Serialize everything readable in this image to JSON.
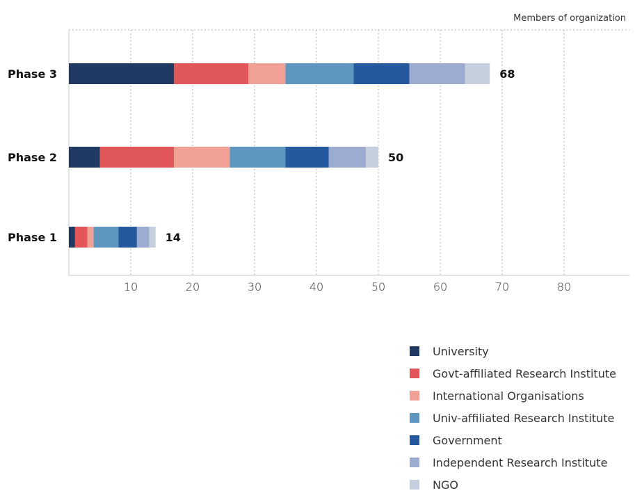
{
  "chart_data": {
    "type": "bar",
    "orientation": "horizontal",
    "stacked": true,
    "title": "",
    "xlabel": "Members of  organization",
    "ylabel": "",
    "xlim": [
      0,
      80
    ],
    "xticks": [
      10,
      20,
      30,
      40,
      50,
      60,
      70,
      80
    ],
    "grid": true,
    "legend_position": "bottom-right",
    "categories": [
      "Phase 3",
      "Phase 2",
      "Phase 1"
    ],
    "series": [
      {
        "name": "University",
        "color": "#213a64",
        "values": [
          17,
          5,
          1
        ]
      },
      {
        "name": "Govt-affiliated Research Institute",
        "color": "#e15759",
        "values": [
          12,
          12,
          2
        ]
      },
      {
        "name": "International Organisations",
        "color": "#f0a094",
        "values": [
          6,
          9,
          1
        ]
      },
      {
        "name": "Univ-affiliated Research Institute",
        "color": "#5f96c0",
        "values": [
          11,
          9,
          4
        ]
      },
      {
        "name": "Government",
        "color": "#25589c",
        "values": [
          9,
          7,
          3
        ]
      },
      {
        "name": "Independent Research Institute",
        "color": "#9bacd0",
        "values": [
          9,
          6,
          2
        ]
      },
      {
        "name": "NGO",
        "color": "#c5cfdd",
        "values": [
          4,
          2,
          1
        ]
      }
    ],
    "totals": [
      68,
      50,
      14
    ]
  }
}
